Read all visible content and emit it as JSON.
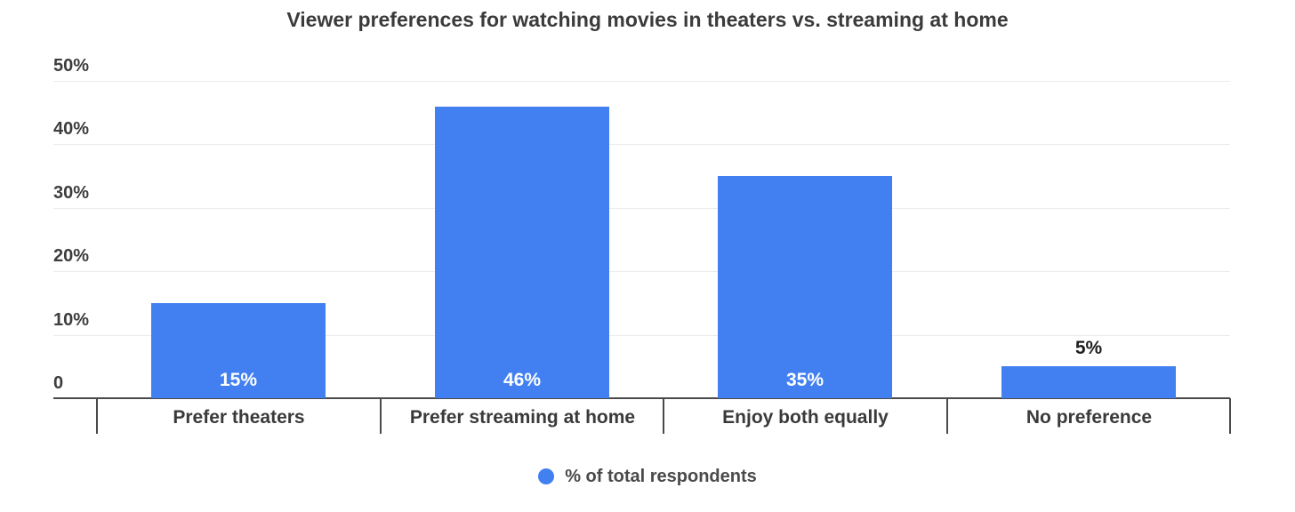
{
  "chart_data": {
    "type": "bar",
    "title": "Viewer preferences for watching movies in theaters vs. streaming at home",
    "categories": [
      "Prefer theaters",
      "Prefer streaming at home",
      "Enjoy both equally",
      "No preference"
    ],
    "series": [
      {
        "name": "% of total respondents",
        "values": [
          15,
          46,
          35,
          5
        ],
        "data_labels": [
          "15%",
          "46%",
          "35%",
          "5%"
        ]
      }
    ],
    "legend": {
      "label": "% of total respondents",
      "position": "bottom"
    },
    "xlabel": "",
    "ylabel": "",
    "ylim": [
      0,
      50
    ],
    "yticks": [
      0,
      10,
      20,
      30,
      40,
      50
    ],
    "ytick_labels": [
      "0",
      "10%",
      "20%",
      "30%",
      "40%",
      "50%"
    ],
    "grid": "horizontal",
    "colors": {
      "bar": "#4280f2",
      "label_inside": "#ffffff",
      "label_outside": "#1f1f1f",
      "title_text": "#3b3b3b",
      "axis_text": "#3d3d3d",
      "gridline": "#ececec",
      "axis_line": "#4a4a4a",
      "background": "#ffffff"
    }
  }
}
